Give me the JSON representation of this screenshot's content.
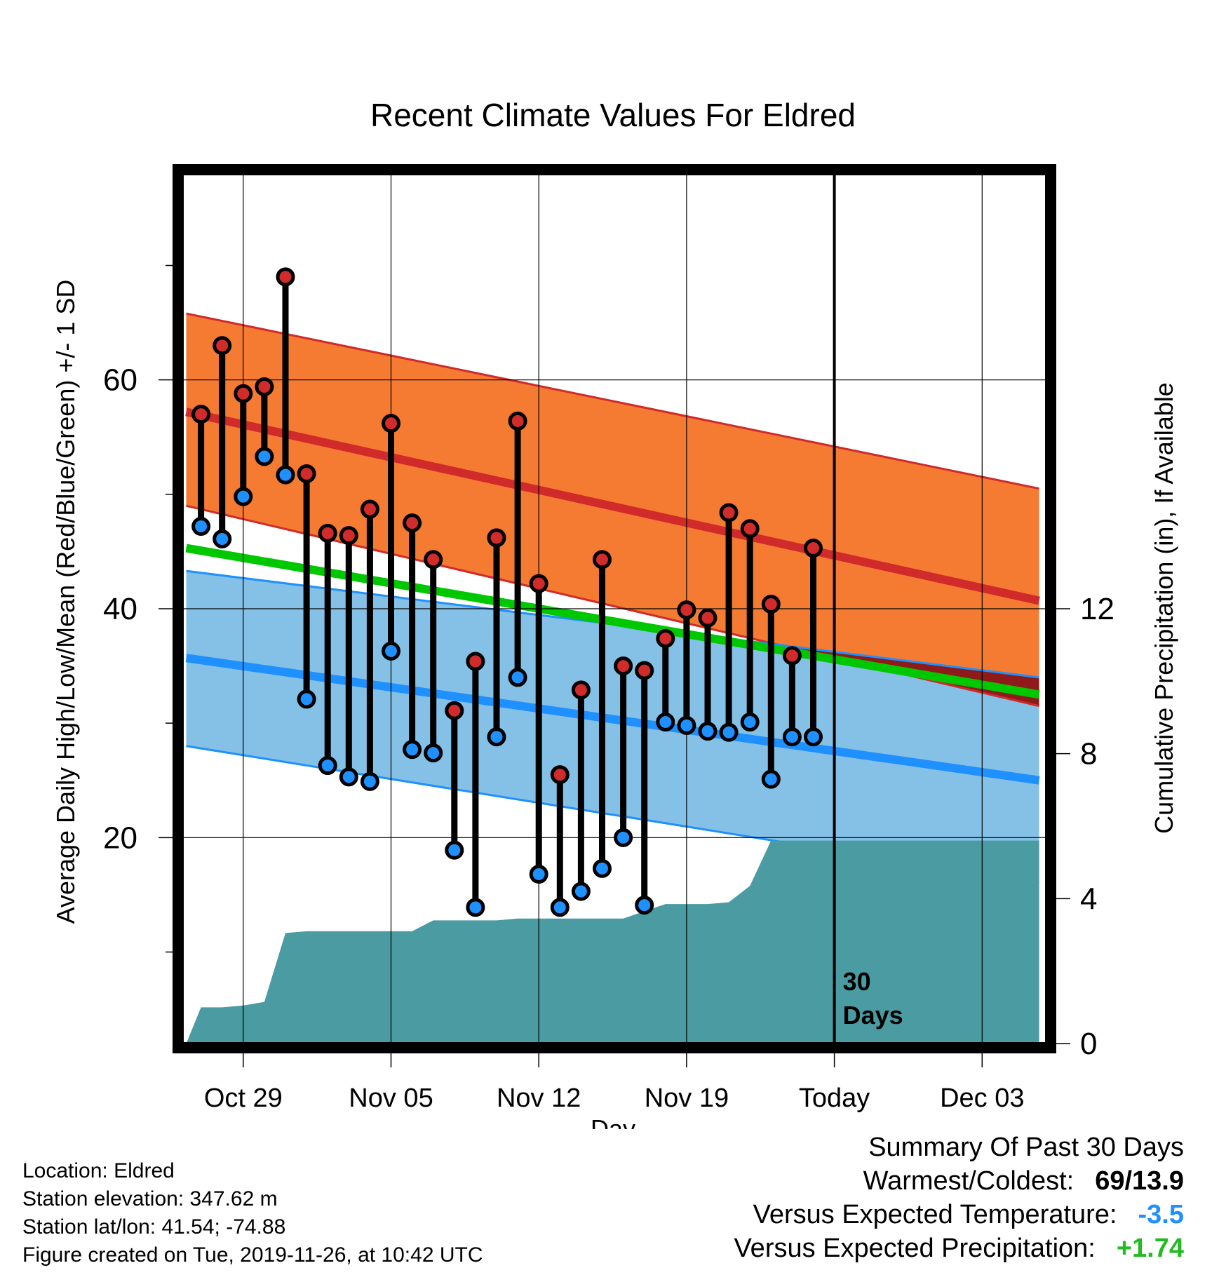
{
  "chart_data": {
    "type": "line",
    "title": "Recent Climate Values For Eldred",
    "xlabel": "Day",
    "ylabel": "Average Daily High/Low/Mean (Red/Blue/Green) +/- 1 SD",
    "y2label": "Cumulative Precipitation (in), If Available",
    "ylim": [
      2,
      78
    ],
    "y2lim": [
      0,
      24
    ],
    "x_ticks": [
      {
        "day": 3,
        "label": "Oct 29"
      },
      {
        "day": 10,
        "label": "Nov 05"
      },
      {
        "day": 17,
        "label": "Nov 12"
      },
      {
        "day": 24,
        "label": "Nov 19"
      },
      {
        "day": 31,
        "label": "Today"
      },
      {
        "day": 38,
        "label": "Dec 03"
      }
    ],
    "y_ticks": [
      20,
      40,
      60
    ],
    "y2_ticks": [
      0,
      4,
      8,
      12
    ],
    "xlim": [
      0.3,
      40.7
    ],
    "today_day": 31,
    "today_annotation": [
      "30",
      "Days"
    ],
    "grid": true,
    "normals": {
      "days": [
        0.3,
        40.7
      ],
      "high_mean": [
        57.2,
        40.7
      ],
      "high_sd_upper": [
        65.8,
        50.5
      ],
      "high_sd_lower": [
        49.0,
        31.5
      ],
      "low_mean": [
        35.7,
        25.0
      ],
      "low_sd_upper": [
        43.3,
        34.0
      ],
      "low_sd_lower": [
        28.0,
        16.0
      ],
      "mean": [
        45.3,
        32.5
      ]
    },
    "days": [
      1,
      2,
      3,
      4,
      5,
      6,
      7,
      8,
      9,
      10,
      11,
      12,
      13,
      14,
      15,
      16,
      17,
      18,
      19,
      20,
      21,
      22,
      23,
      24,
      25,
      26,
      27,
      28,
      29,
      30
    ],
    "series": [
      {
        "name": "High",
        "values": [
          57,
          63,
          58.8,
          59.4,
          69,
          51.8,
          46.6,
          46.4,
          48.7,
          56.2,
          47.5,
          44.3,
          31.1,
          35.4,
          46.2,
          56.4,
          42.2,
          25.5,
          32.9,
          44.3,
          35,
          34.6,
          37.4,
          39.9,
          39.2,
          48.4,
          47,
          40.4,
          35.9,
          45.3
        ]
      },
      {
        "name": "Low",
        "values": [
          47.2,
          46.1,
          49.8,
          53.3,
          51.7,
          32.1,
          26.3,
          25.3,
          24.9,
          36.3,
          27.7,
          27.4,
          18.9,
          13.9,
          28.8,
          34,
          16.8,
          13.9,
          15.3,
          17.3,
          20,
          14.1,
          30.1,
          29.8,
          29.3,
          29.2,
          30.1,
          25.1,
          28.8,
          28.8
        ]
      }
    ],
    "precip_days": [
      0.3,
      1,
      2,
      3,
      4,
      5,
      6,
      7,
      8,
      9,
      10,
      11,
      12,
      13,
      14,
      15,
      16,
      17,
      18,
      19,
      20,
      21,
      22,
      23,
      24,
      25,
      26,
      27,
      28,
      29,
      30,
      31,
      40.7
    ],
    "precip_cumulative": [
      0,
      1,
      1,
      1.05,
      1.15,
      3.05,
      3.1,
      3.1,
      3.1,
      3.1,
      3.1,
      3.1,
      3.4,
      3.4,
      3.4,
      3.4,
      3.45,
      3.45,
      3.45,
      3.45,
      3.45,
      3.45,
      3.65,
      3.85,
      3.85,
      3.85,
      3.9,
      4.35,
      5.6,
      5.6,
      5.6,
      5.6,
      5.6
    ],
    "colors": {
      "high_band": "#F57A32",
      "high_line": "#D02A2A",
      "low_band": "#85C1E6",
      "low_line": "#1E90FF",
      "mean_line": "#00C800",
      "overlap": "#8E1A1A",
      "precip": "#4A9BA2",
      "high_dot": "#D12B2B",
      "low_dot": "#1E90FF"
    }
  },
  "footer": {
    "location": "Location: Eldred",
    "elevation": "Station elevation: 347.62 m",
    "latlon": "Station lat/lon: 41.54; -74.88",
    "created": "Figure created on Tue, 2019-11-26, at 10:42 UTC"
  },
  "summary": {
    "title": "Summary Of Past 30 Days",
    "warmest_label": "Warmest/Coldest:",
    "warmest_value": "69/13.9",
    "temp_label": "Versus Expected Temperature:",
    "temp_value": "-3.5",
    "temp_color": "#1E90FF",
    "precip_label": "Versus Expected Precipitation:",
    "precip_value": "+1.74",
    "precip_color": "#22BB22"
  }
}
